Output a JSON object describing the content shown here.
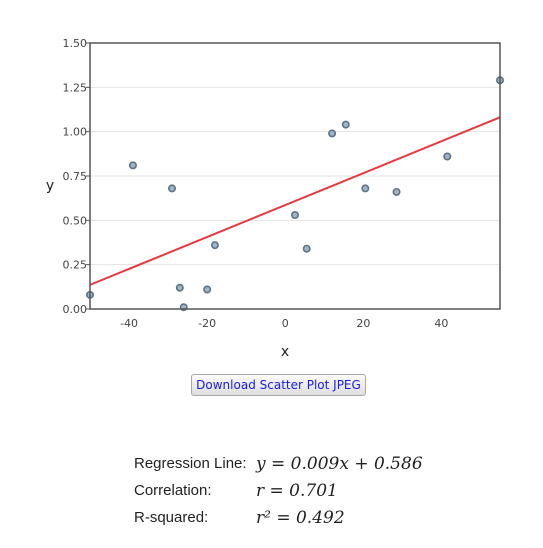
{
  "chart_data": {
    "type": "scatter",
    "xlabel": "x",
    "ylabel": "y",
    "xlim": [
      -50,
      55
    ],
    "ylim": [
      0,
      1.5
    ],
    "x_ticks": [
      "-40",
      "-20",
      "0",
      "20",
      "40"
    ],
    "x_tick_values": [
      -40,
      -20,
      0,
      20,
      40
    ],
    "y_ticks": [
      "0.00",
      "0.25",
      "0.50",
      "0.75",
      "1.00",
      "1.25",
      "1.50"
    ],
    "y_tick_values": [
      0,
      0.25,
      0.5,
      0.75,
      1.0,
      1.25,
      1.5
    ],
    "grid": true,
    "points": [
      {
        "x": -50,
        "y": 0.08
      },
      {
        "x": -39,
        "y": 0.81
      },
      {
        "x": -29,
        "y": 0.68
      },
      {
        "x": -27,
        "y": 0.12
      },
      {
        "x": -26,
        "y": 0.01
      },
      {
        "x": -20,
        "y": 0.11
      },
      {
        "x": -18,
        "y": 0.36
      },
      {
        "x": 2.5,
        "y": 0.53
      },
      {
        "x": 5.5,
        "y": 0.34
      },
      {
        "x": 12,
        "y": 0.99
      },
      {
        "x": 15.5,
        "y": 1.04
      },
      {
        "x": 20.5,
        "y": 0.68
      },
      {
        "x": 28.5,
        "y": 0.66
      },
      {
        "x": 41.5,
        "y": 0.86
      },
      {
        "x": 55,
        "y": 1.29
      }
    ],
    "regression": {
      "slope": 0.009,
      "intercept": 0.586
    },
    "colors": {
      "points_fill": "#9fb4c6",
      "points_stroke": "#5d7387",
      "regression_line": "#e8383d",
      "grid": "#e2e2e2",
      "frame": "#555555"
    }
  },
  "download_button": "Download Scatter Plot JPEG",
  "stats": {
    "regression": {
      "label": "Regression Line:",
      "value": "y = 0.009x + 0.586"
    },
    "correlation": {
      "label": "Correlation:",
      "value": "r = 0.701"
    },
    "r_squared": {
      "label": "R-squared:",
      "value": "r² = 0.492"
    }
  }
}
